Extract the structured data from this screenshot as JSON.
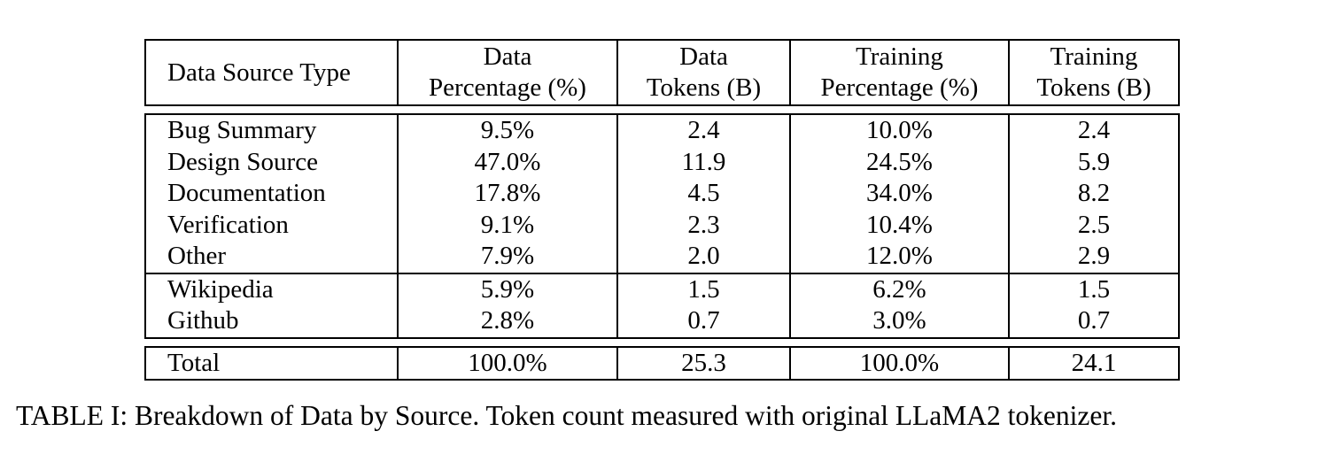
{
  "table": {
    "headers": [
      [
        "Data Source Type"
      ],
      [
        "Data",
        "Percentage (%)"
      ],
      [
        "Data",
        "Tokens (B)"
      ],
      [
        "Training",
        "Percentage (%)"
      ],
      [
        "Training",
        "Tokens (B)"
      ]
    ],
    "groups": [
      [
        [
          "Bug Summary",
          "9.5%",
          "2.4",
          "10.0%",
          "2.4"
        ],
        [
          "Design Source",
          "47.0%",
          "11.9",
          "24.5%",
          "5.9"
        ],
        [
          "Documentation",
          "17.8%",
          "4.5",
          "34.0%",
          "8.2"
        ],
        [
          "Verification",
          "9.1%",
          "2.3",
          "10.4%",
          "2.5"
        ],
        [
          "Other",
          "7.9%",
          "2.0",
          "12.0%",
          "2.9"
        ]
      ],
      [
        [
          "Wikipedia",
          "5.9%",
          "1.5",
          "6.2%",
          "1.5"
        ],
        [
          "Github",
          "2.8%",
          "0.7",
          "3.0%",
          "0.7"
        ]
      ]
    ],
    "total": [
      "Total",
      "100.0%",
      "25.3",
      "100.0%",
      "24.1"
    ]
  },
  "caption": "TABLE I: Breakdown of Data by Source. Token count measured with original LLaMA2 tokenizer."
}
